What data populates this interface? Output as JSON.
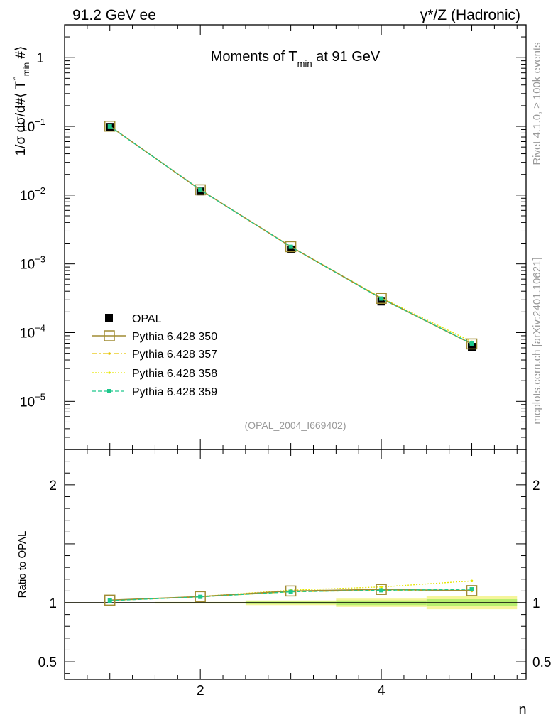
{
  "header": {
    "left": "91.2 GeV ee",
    "right": "γ*/Z (Hadronic)"
  },
  "side_labels": {
    "rivet": "Rivet 4.1.0, ≥ 100k events",
    "mcplots": "mcplots.cern.ch [arXiv:2401.10621]"
  },
  "colors": {
    "opal": "#000000",
    "p350": "#a08c32",
    "p357": "#e6c300",
    "p358": "#e6e600",
    "p359": "#1ec88c",
    "band_inner": "#b6ee6e",
    "band_outer": "#f5f59a"
  },
  "chart_data": [
    {
      "type": "scatter",
      "title": "Moments of T",
      "title_sub": "min",
      "title_suffix": " at 91 GeV",
      "ylabel_parts": {
        "a": "1/σ  dσ/d#⟨ T",
        "sup": "n",
        "sub": "min",
        "b": " #⟩"
      },
      "xlabel": "n",
      "yscale": "log",
      "ylim": [
        2e-06,
        3
      ],
      "xlim": [
        0.5,
        5.6
      ],
      "y_ticks": [
        {
          "value": 1,
          "label": "1",
          "base": "",
          "exp": ""
        },
        {
          "value": 0.1,
          "label": "",
          "base": "10",
          "exp": "−1"
        },
        {
          "value": 0.01,
          "label": "",
          "base": "10",
          "exp": "−2"
        },
        {
          "value": 0.001,
          "label": "",
          "base": "10",
          "exp": "−3"
        },
        {
          "value": 0.0001,
          "label": "",
          "base": "10",
          "exp": "−4"
        },
        {
          "value": 1e-05,
          "label": "",
          "base": "10",
          "exp": "−5"
        }
      ],
      "analysis_tag": "(OPAL_2004_I669402)",
      "x": [
        1,
        2,
        3,
        4,
        5
      ],
      "series": [
        {
          "key": "opal",
          "name": "OPAL",
          "values": [
            0.0985,
            0.0113,
            0.00162,
            0.000283,
            6.21e-05
          ],
          "yerr": [
            0.003,
            0.0004,
            6e-05,
            1e-05,
            3e-06
          ]
        },
        {
          "key": "p350",
          "name": "Pythia 6.428 350",
          "values": [
            0.1007,
            0.01193,
            0.00178,
            0.000315,
            6.85e-05
          ]
        },
        {
          "key": "p357",
          "name": "Pythia 6.428 357",
          "values": [
            0.1004,
            0.0119,
            0.00177,
            0.000313,
            6.83e-05
          ]
        },
        {
          "key": "p358",
          "name": "Pythia 6.428 358",
          "values": [
            0.1005,
            0.01192,
            0.00179,
            0.000321,
            7.36e-05
          ]
        },
        {
          "key": "p359",
          "name": "Pythia 6.428 359",
          "values": [
            0.1003,
            0.0119,
            0.00177,
            0.000313,
            6.92e-05
          ]
        }
      ]
    },
    {
      "type": "scatter",
      "ylabel": "Ratio to OPAL",
      "ylim": [
        0.35,
        2.3
      ],
      "xlim": [
        0.5,
        5.6
      ],
      "x_ticks": [
        {
          "value": 2,
          "label": "2"
        },
        {
          "value": 4,
          "label": "4"
        }
      ],
      "y_ticks": [
        {
          "value": 2,
          "label": "2"
        },
        {
          "value": 1,
          "label": "1"
        },
        {
          "value": 0.5,
          "label": "0.5"
        }
      ],
      "band": [
        {
          "x": [
            0.5,
            1.5
          ],
          "inner": 0.003,
          "outer": 0.005
        },
        {
          "x": [
            1.5,
            2.5
          ],
          "inner": 0.004,
          "outer": 0.007
        },
        {
          "x": [
            2.5,
            3.5
          ],
          "inner": 0.01,
          "outer": 0.02
        },
        {
          "x": [
            3.5,
            4.5
          ],
          "inner": 0.02,
          "outer": 0.035
        },
        {
          "x": [
            4.5,
            5.5
          ],
          "inner": 0.03,
          "outer": 0.055
        }
      ],
      "x": [
        1,
        2,
        3,
        4,
        5
      ],
      "series": [
        {
          "key": "p350",
          "name": "Pythia 6.428 350",
          "values": [
            1.022,
            1.052,
            1.1,
            1.113,
            1.103
          ]
        },
        {
          "key": "p357",
          "name": "Pythia 6.428 357",
          "values": [
            1.019,
            1.05,
            1.093,
            1.106,
            1.1
          ]
        },
        {
          "key": "p358",
          "name": "Pythia 6.428 358",
          "values": [
            1.02,
            1.054,
            1.107,
            1.134,
            1.185
          ]
        },
        {
          "key": "p359",
          "name": "Pythia 6.428 359",
          "values": [
            1.018,
            1.05,
            1.093,
            1.106,
            1.114
          ]
        }
      ]
    }
  ]
}
